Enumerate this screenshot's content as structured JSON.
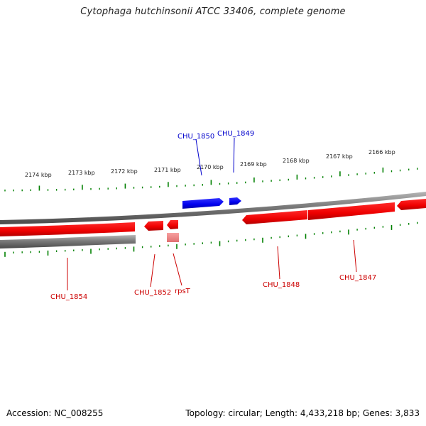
{
  "title": "Cytophaga hutchinsonii ATCC 33406, complete genome",
  "footer": {
    "accession": "Accession: NC_008255",
    "summary": "Topology: circular; Length: 4,433,218 bp; Genes: 3,833"
  },
  "colors": {
    "forward_gene": "#0000ff",
    "reverse_gene": "#ff0000",
    "reverse_rna": "#f08080",
    "backbone": "#808080",
    "tick": "#008000",
    "forward_label": "#0000cc",
    "reverse_label": "#cc0000"
  },
  "scale": {
    "unit": "kbp",
    "upper_ticks": [
      {
        "label": "2174 kbp"
      },
      {
        "label": "2173 kbp"
      },
      {
        "label": "2172 kbp"
      },
      {
        "label": "2171 kbp"
      },
      {
        "label": "2170 kbp"
      },
      {
        "label": "2169 kbp"
      },
      {
        "label": "2168 kbp"
      },
      {
        "label": "2167 kbp"
      },
      {
        "label": "2166 kbp"
      }
    ]
  },
  "genes": {
    "forward": [
      {
        "name": "CHU_1850",
        "label": "CHU_1850"
      },
      {
        "name": "CHU_1849",
        "label": "CHU_1849"
      }
    ],
    "reverse": [
      {
        "name": "CHU_1854",
        "label": "CHU_1854"
      },
      {
        "name": "CHU_1852",
        "label": "CHU_1852"
      },
      {
        "name": "rpsT",
        "label": "rpsT",
        "type": "rRNA/tRNA"
      },
      {
        "name": "CHU_1848",
        "label": "CHU_1848"
      },
      {
        "name": "CHU_1847",
        "label": "CHU_1847"
      }
    ]
  }
}
